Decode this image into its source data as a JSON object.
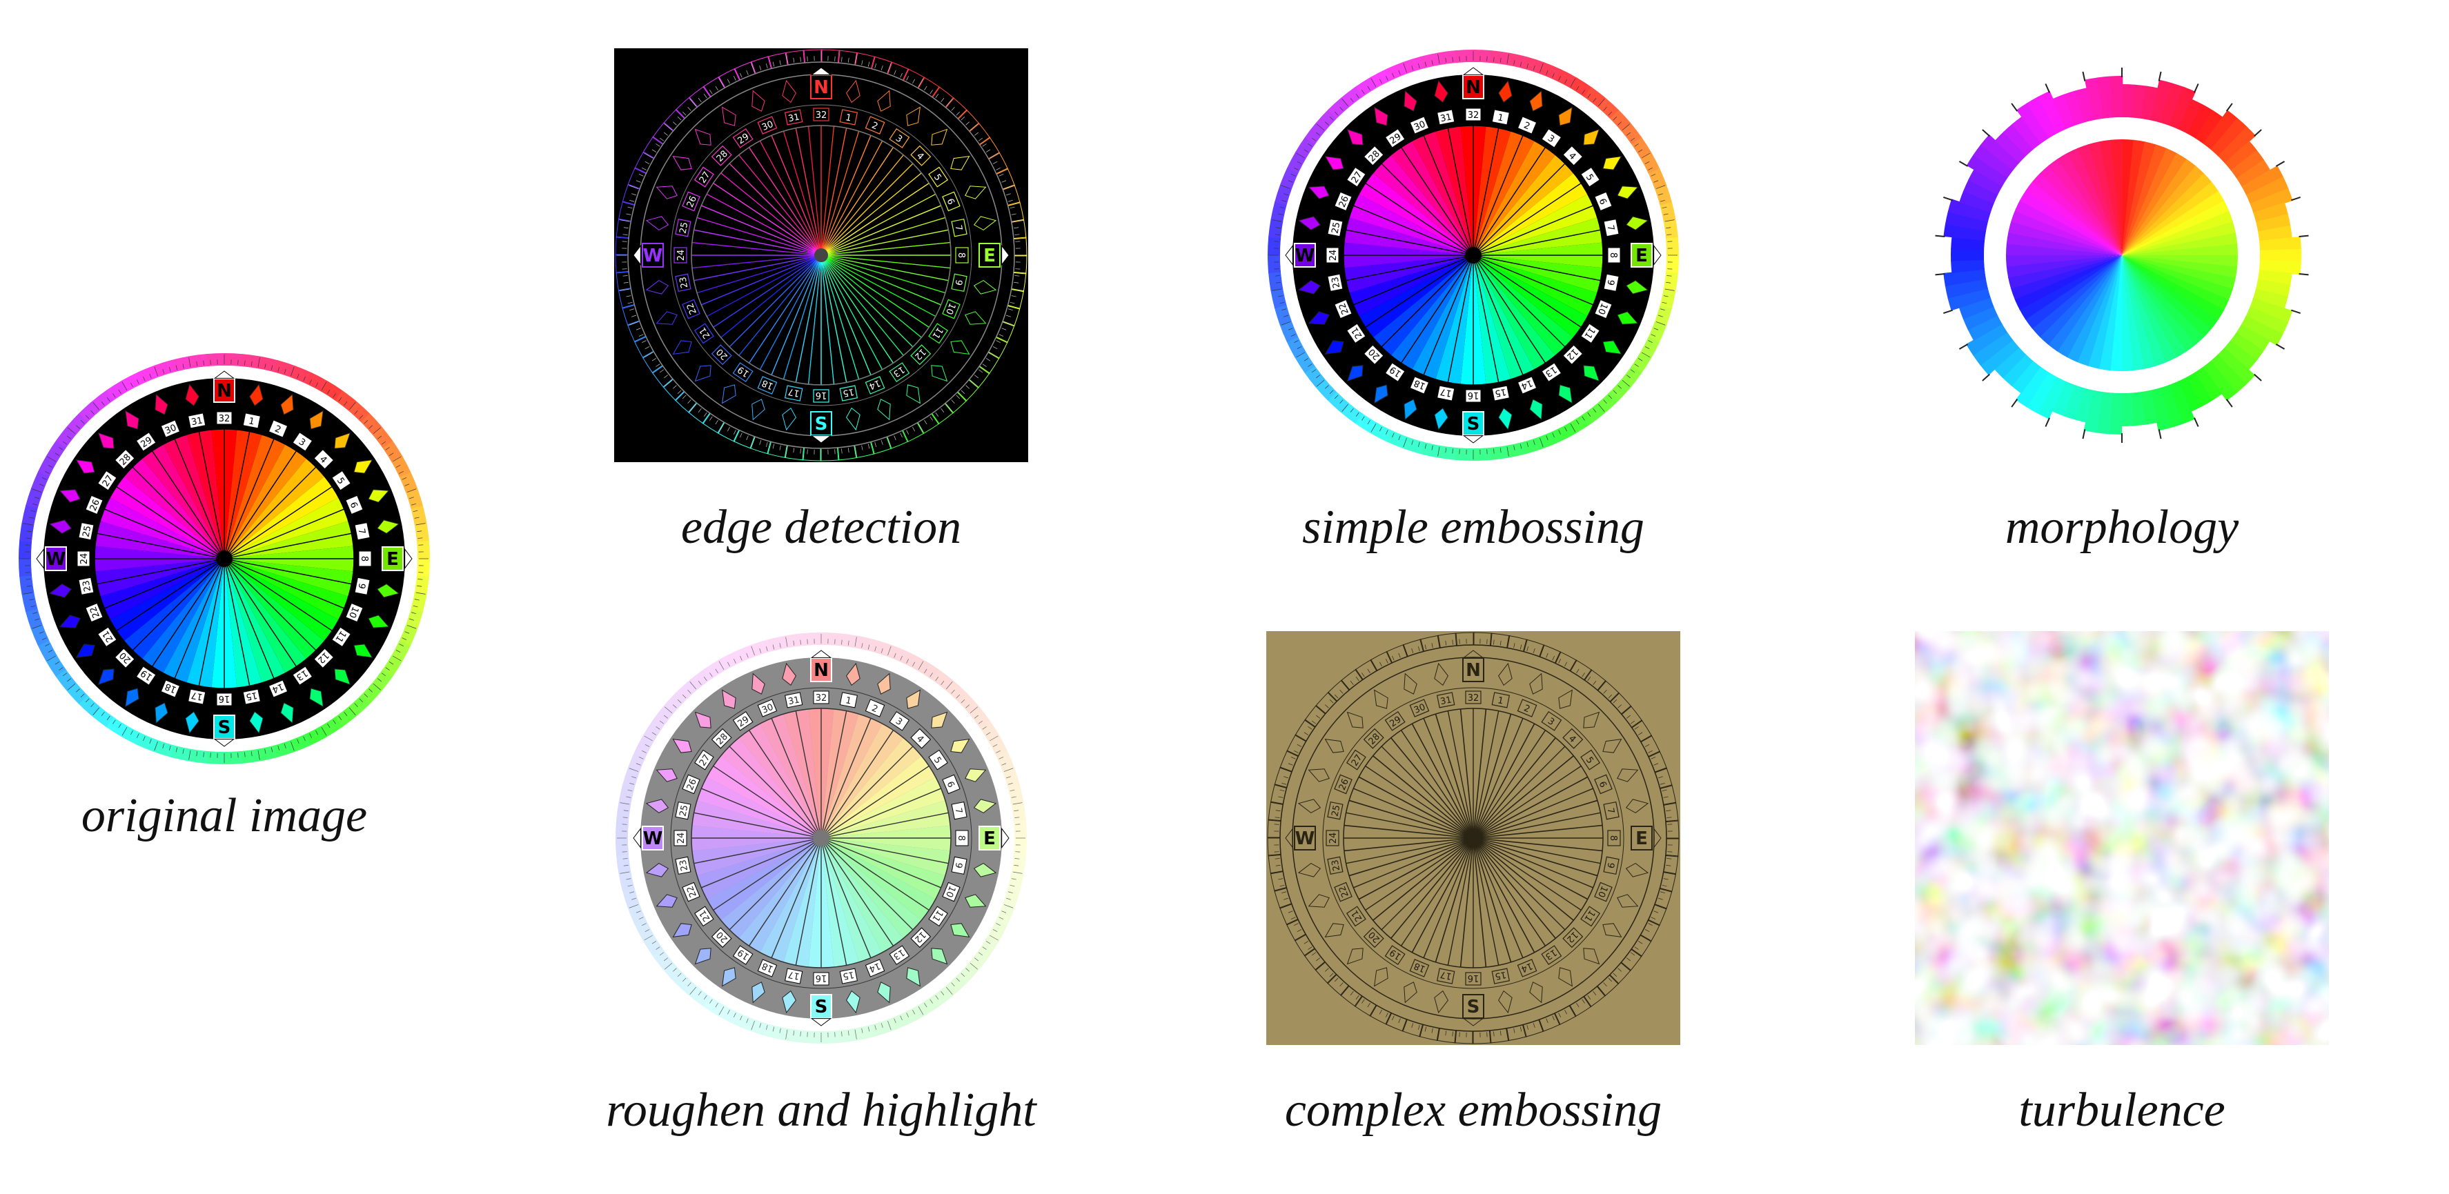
{
  "captions": {
    "original": "original image",
    "edge": "edge detection",
    "simple": "simple embossing",
    "morph": "morphology",
    "roughen": "roughen and highlight",
    "complex": "complex embossing",
    "turbulence": "turbulence"
  },
  "compass": {
    "cardinals": [
      "N",
      "E",
      "S",
      "W"
    ],
    "point_count": 32,
    "point_numbers": [
      "1",
      "2",
      "3",
      "4",
      "5",
      "6",
      "7",
      "8",
      "9",
      "10",
      "11",
      "12",
      "13",
      "14",
      "15",
      "16",
      "17",
      "18",
      "19",
      "20",
      "21",
      "22",
      "23",
      "24",
      "25",
      "26",
      "27",
      "28",
      "29",
      "30",
      "31",
      "32"
    ]
  },
  "colors": {
    "background": "#ffffff",
    "edge_bg": "#000000",
    "roughen_bg": "#8a8a8a",
    "emboss_bg": "#a2905f",
    "caption": "#111111"
  }
}
